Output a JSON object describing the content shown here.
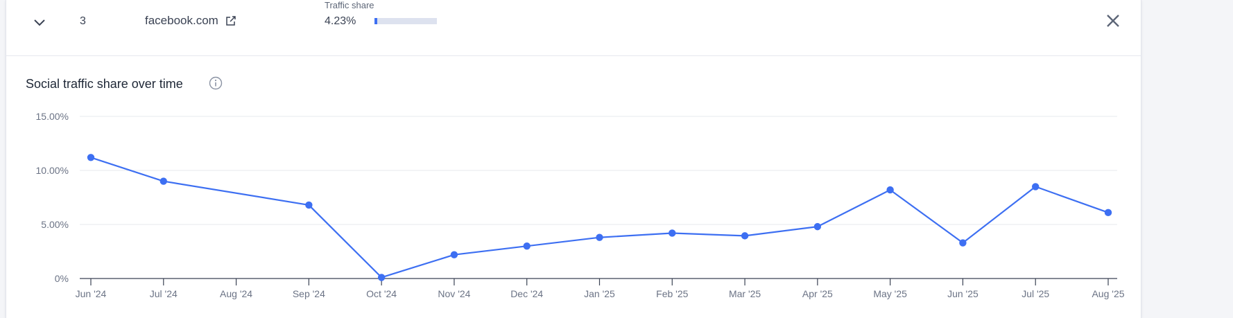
{
  "row": {
    "rank": "3",
    "domain": "facebook.com",
    "traffic_share_label": "Traffic share",
    "traffic_share_value": "4.23%",
    "traffic_share_fraction": 0.0423
  },
  "colors": {
    "accent": "#3d6ff2",
    "bar_track": "#dde2ef"
  },
  "icons": {
    "expand": "chevron-down-icon",
    "external": "external-link-icon",
    "close": "close-icon",
    "info": "info-icon"
  },
  "chart_data": {
    "type": "line",
    "title": "Social traffic share over time",
    "xlabel": "",
    "ylabel": "",
    "x_ticks": [
      "Jun '24",
      "Jul '24",
      "Aug '24",
      "Sep '24",
      "Oct '24",
      "Nov '24",
      "Dec '24",
      "Jan '25",
      "Feb '25",
      "Mar '25",
      "Apr '25",
      "May '25",
      "Jun '25",
      "Jul '25",
      "Aug '25"
    ],
    "y_ticks": [
      {
        "value": 15,
        "label": "15.00%"
      },
      {
        "value": 10,
        "label": "10.00%"
      },
      {
        "value": 5,
        "label": "5.00%"
      },
      {
        "value": 0,
        "label": "0%"
      }
    ],
    "ylim": [
      0,
      15
    ],
    "grid": true,
    "series": [
      {
        "points": [
          {
            "x": "2024-06-01",
            "y": 11.2
          },
          {
            "x": "2024-07-01",
            "y": 9.0
          },
          {
            "x": "2024-09-01",
            "y": 6.8
          },
          {
            "x": "2024-10-01",
            "y": 0.1
          },
          {
            "x": "2024-11-01",
            "y": 2.2
          },
          {
            "x": "2024-12-01",
            "y": 3.0
          },
          {
            "x": "2025-01-01",
            "y": 3.8
          },
          {
            "x": "2025-02-01",
            "y": 4.2
          },
          {
            "x": "2025-03-01",
            "y": 3.95
          },
          {
            "x": "2025-04-01",
            "y": 4.8
          },
          {
            "x": "2025-05-01",
            "y": 8.2
          },
          {
            "x": "2025-06-01",
            "y": 3.3
          },
          {
            "x": "2025-07-01",
            "y": 8.5
          },
          {
            "x": "2025-08-01",
            "y": 6.1
          }
        ]
      }
    ]
  }
}
